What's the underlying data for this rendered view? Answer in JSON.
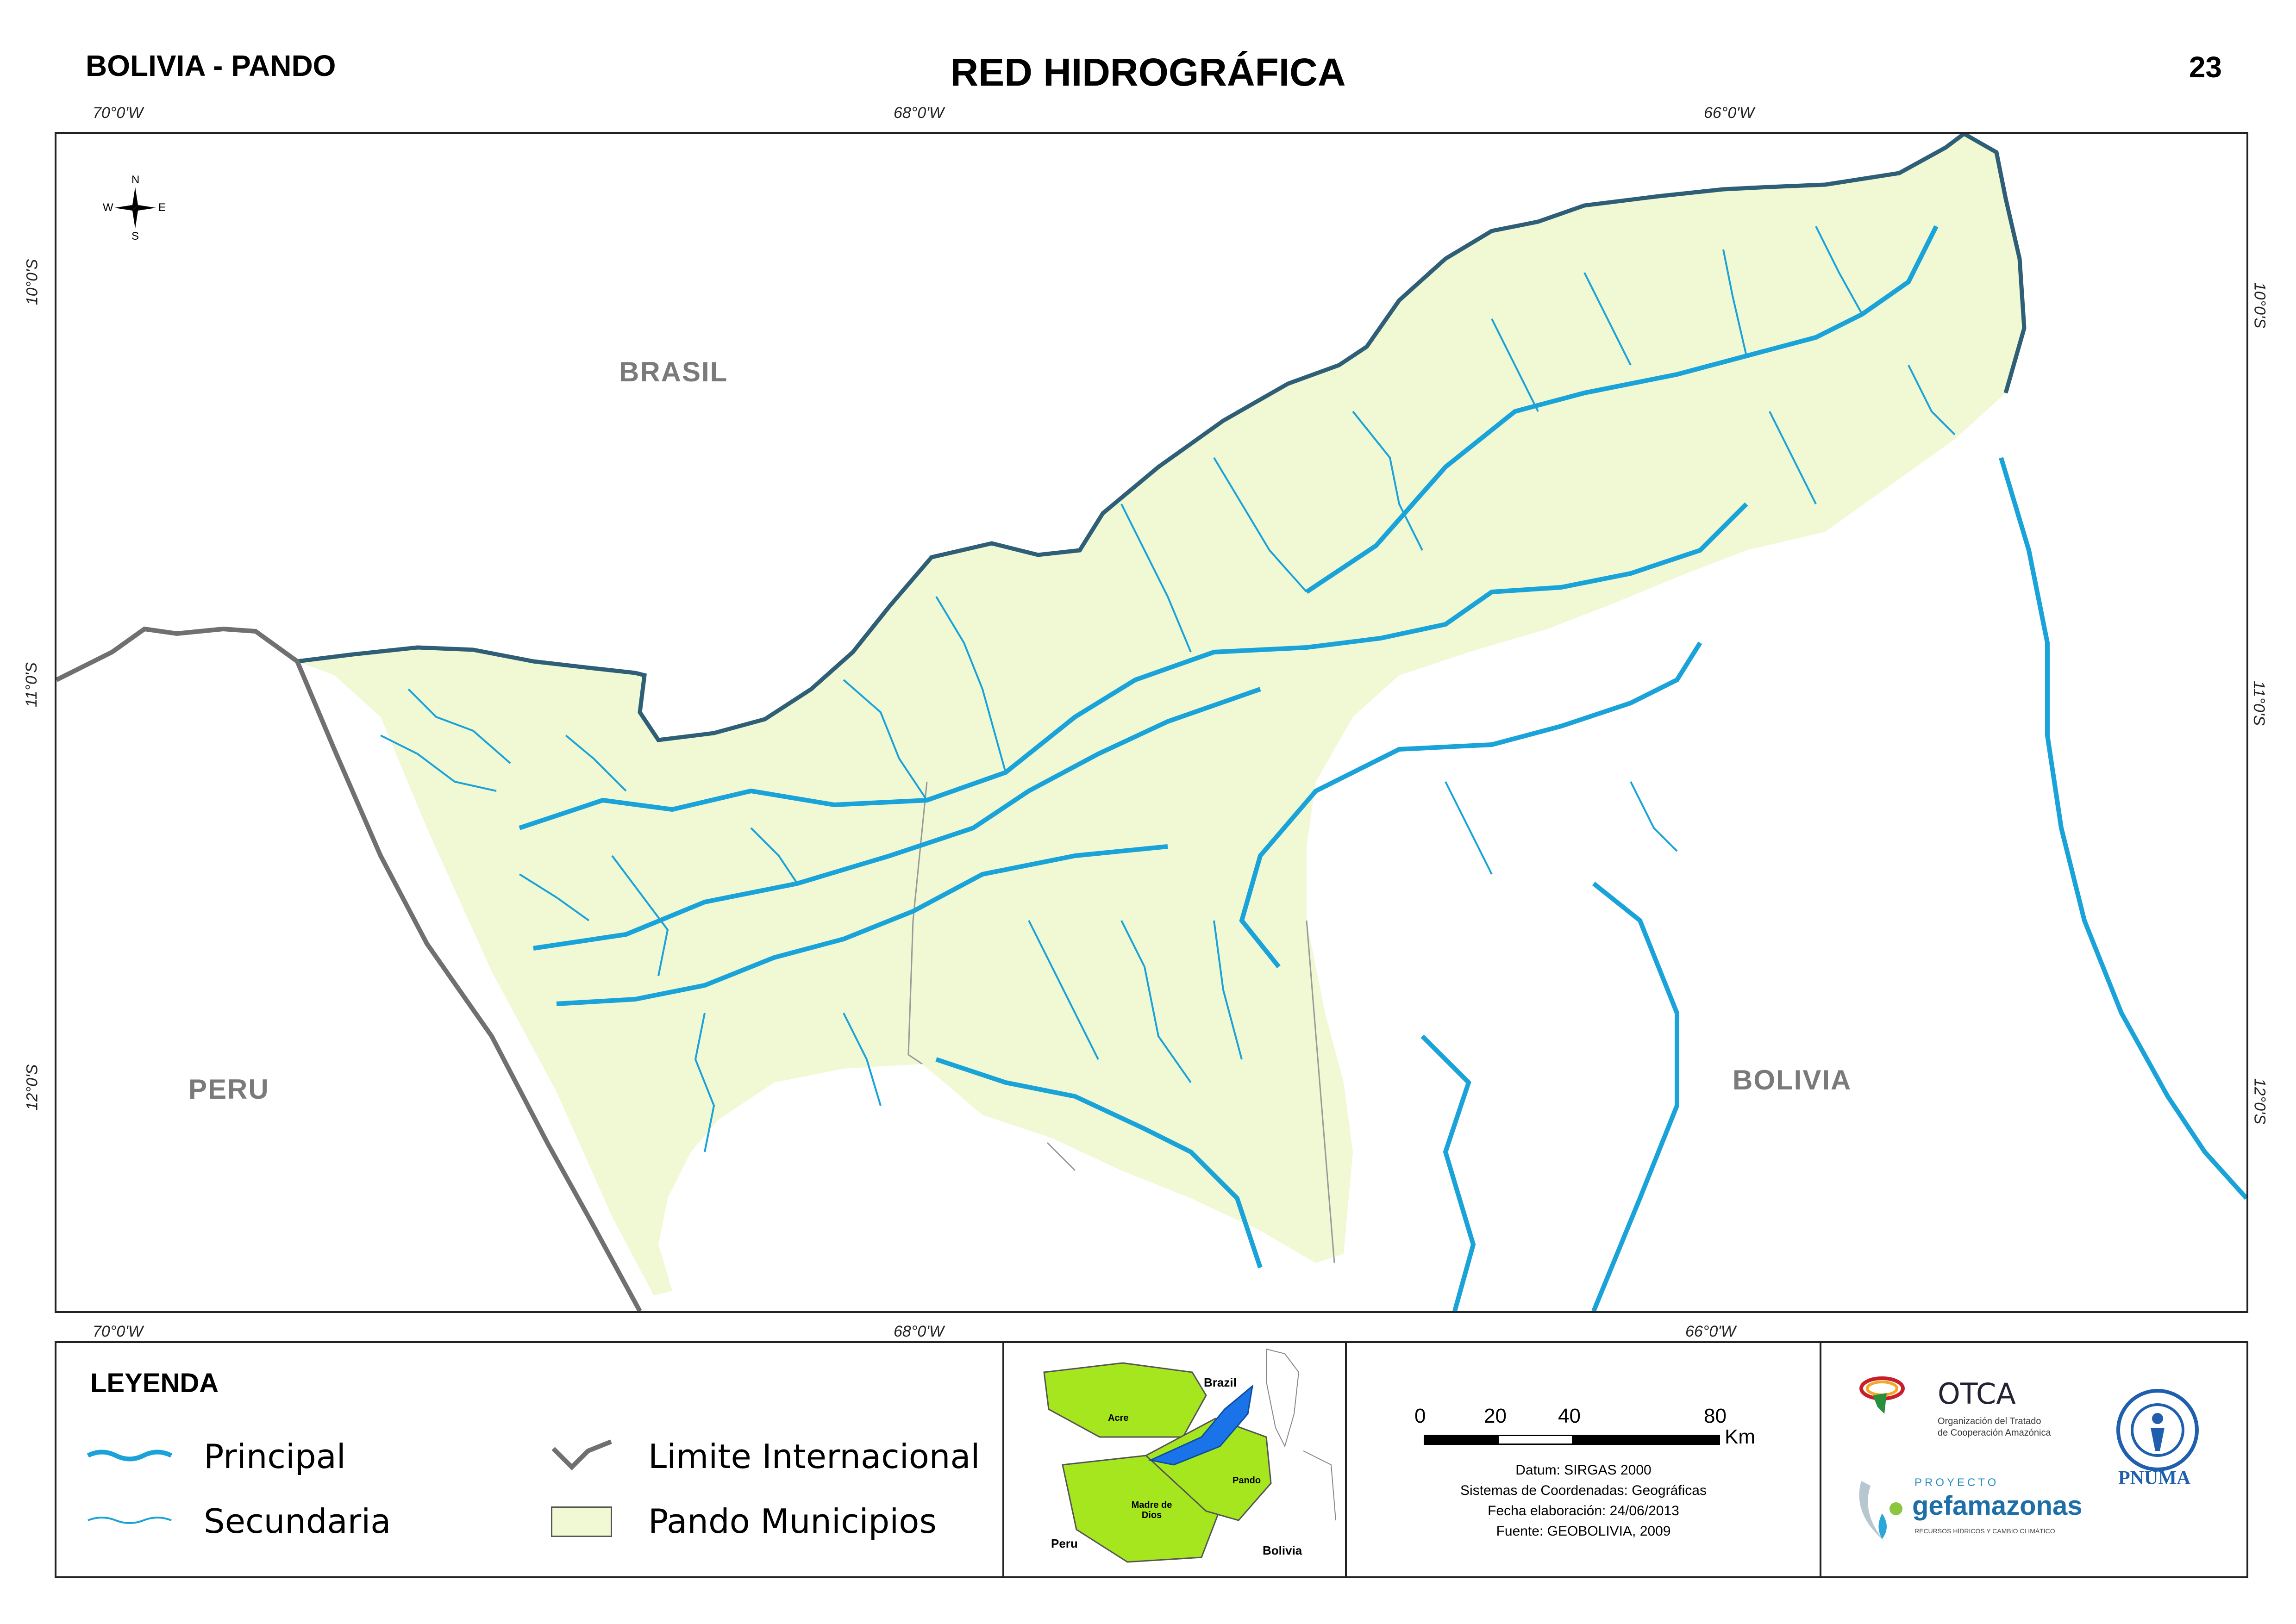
{
  "header": {
    "left": "BOLIVIA - PANDO",
    "title": "RED HIDROGRÁFICA",
    "page_number": "23"
  },
  "map": {
    "lon_labels": [
      "70°0'W",
      "68°0'W",
      "66°0'W"
    ],
    "lat_labels": [
      "10°0'S",
      "11°0'S",
      "12°0'S"
    ],
    "north_arrow": {
      "n": "N",
      "s": "S",
      "e": "E",
      "w": "W"
    },
    "countries": {
      "brasil": "BRASIL",
      "peru": "PERU",
      "bolivia": "BOLIVIA"
    },
    "colors": {
      "pando_fill": "#f0f8d4",
      "river": "#1aa3d9",
      "border": "#707070",
      "brazil_border": "#2f5f77"
    }
  },
  "legend": {
    "title": "LEYENDA",
    "items": {
      "principal": "Principal",
      "secundaria": "Secundaria",
      "limite": "Limite Internacional",
      "municipios": "Pando Municipios"
    }
  },
  "inset": {
    "labels": {
      "brazil": "Brazil",
      "acre": "Acre",
      "pando": "Pando",
      "madre_de_dios": "Madre de Dios",
      "peru": "Peru",
      "bolivia": "Bolivia"
    }
  },
  "scale_info": {
    "ticks": [
      "0",
      "20",
      "40",
      "80"
    ],
    "unit": "Km",
    "datum": "Datum: SIRGAS 2000",
    "sistema": "Sistemas de Coordenadas: Geográficas",
    "fecha": "Fecha elaboración: 24/06/2013",
    "fuente": "Fuente: GEOBOLIVIA, 2009"
  },
  "logos": {
    "otca_name": "OTCA",
    "otca_sub1": "Organización del Tratado",
    "otca_sub2": "de Cooperación Amazónica",
    "proyecto": "PROYECTO",
    "gef_name": "gefamazonas",
    "gef_sub": "RECURSOS HÍDRICOS Y CAMBIO CLIMÁTICO",
    "pnuma": "PNUMA"
  }
}
